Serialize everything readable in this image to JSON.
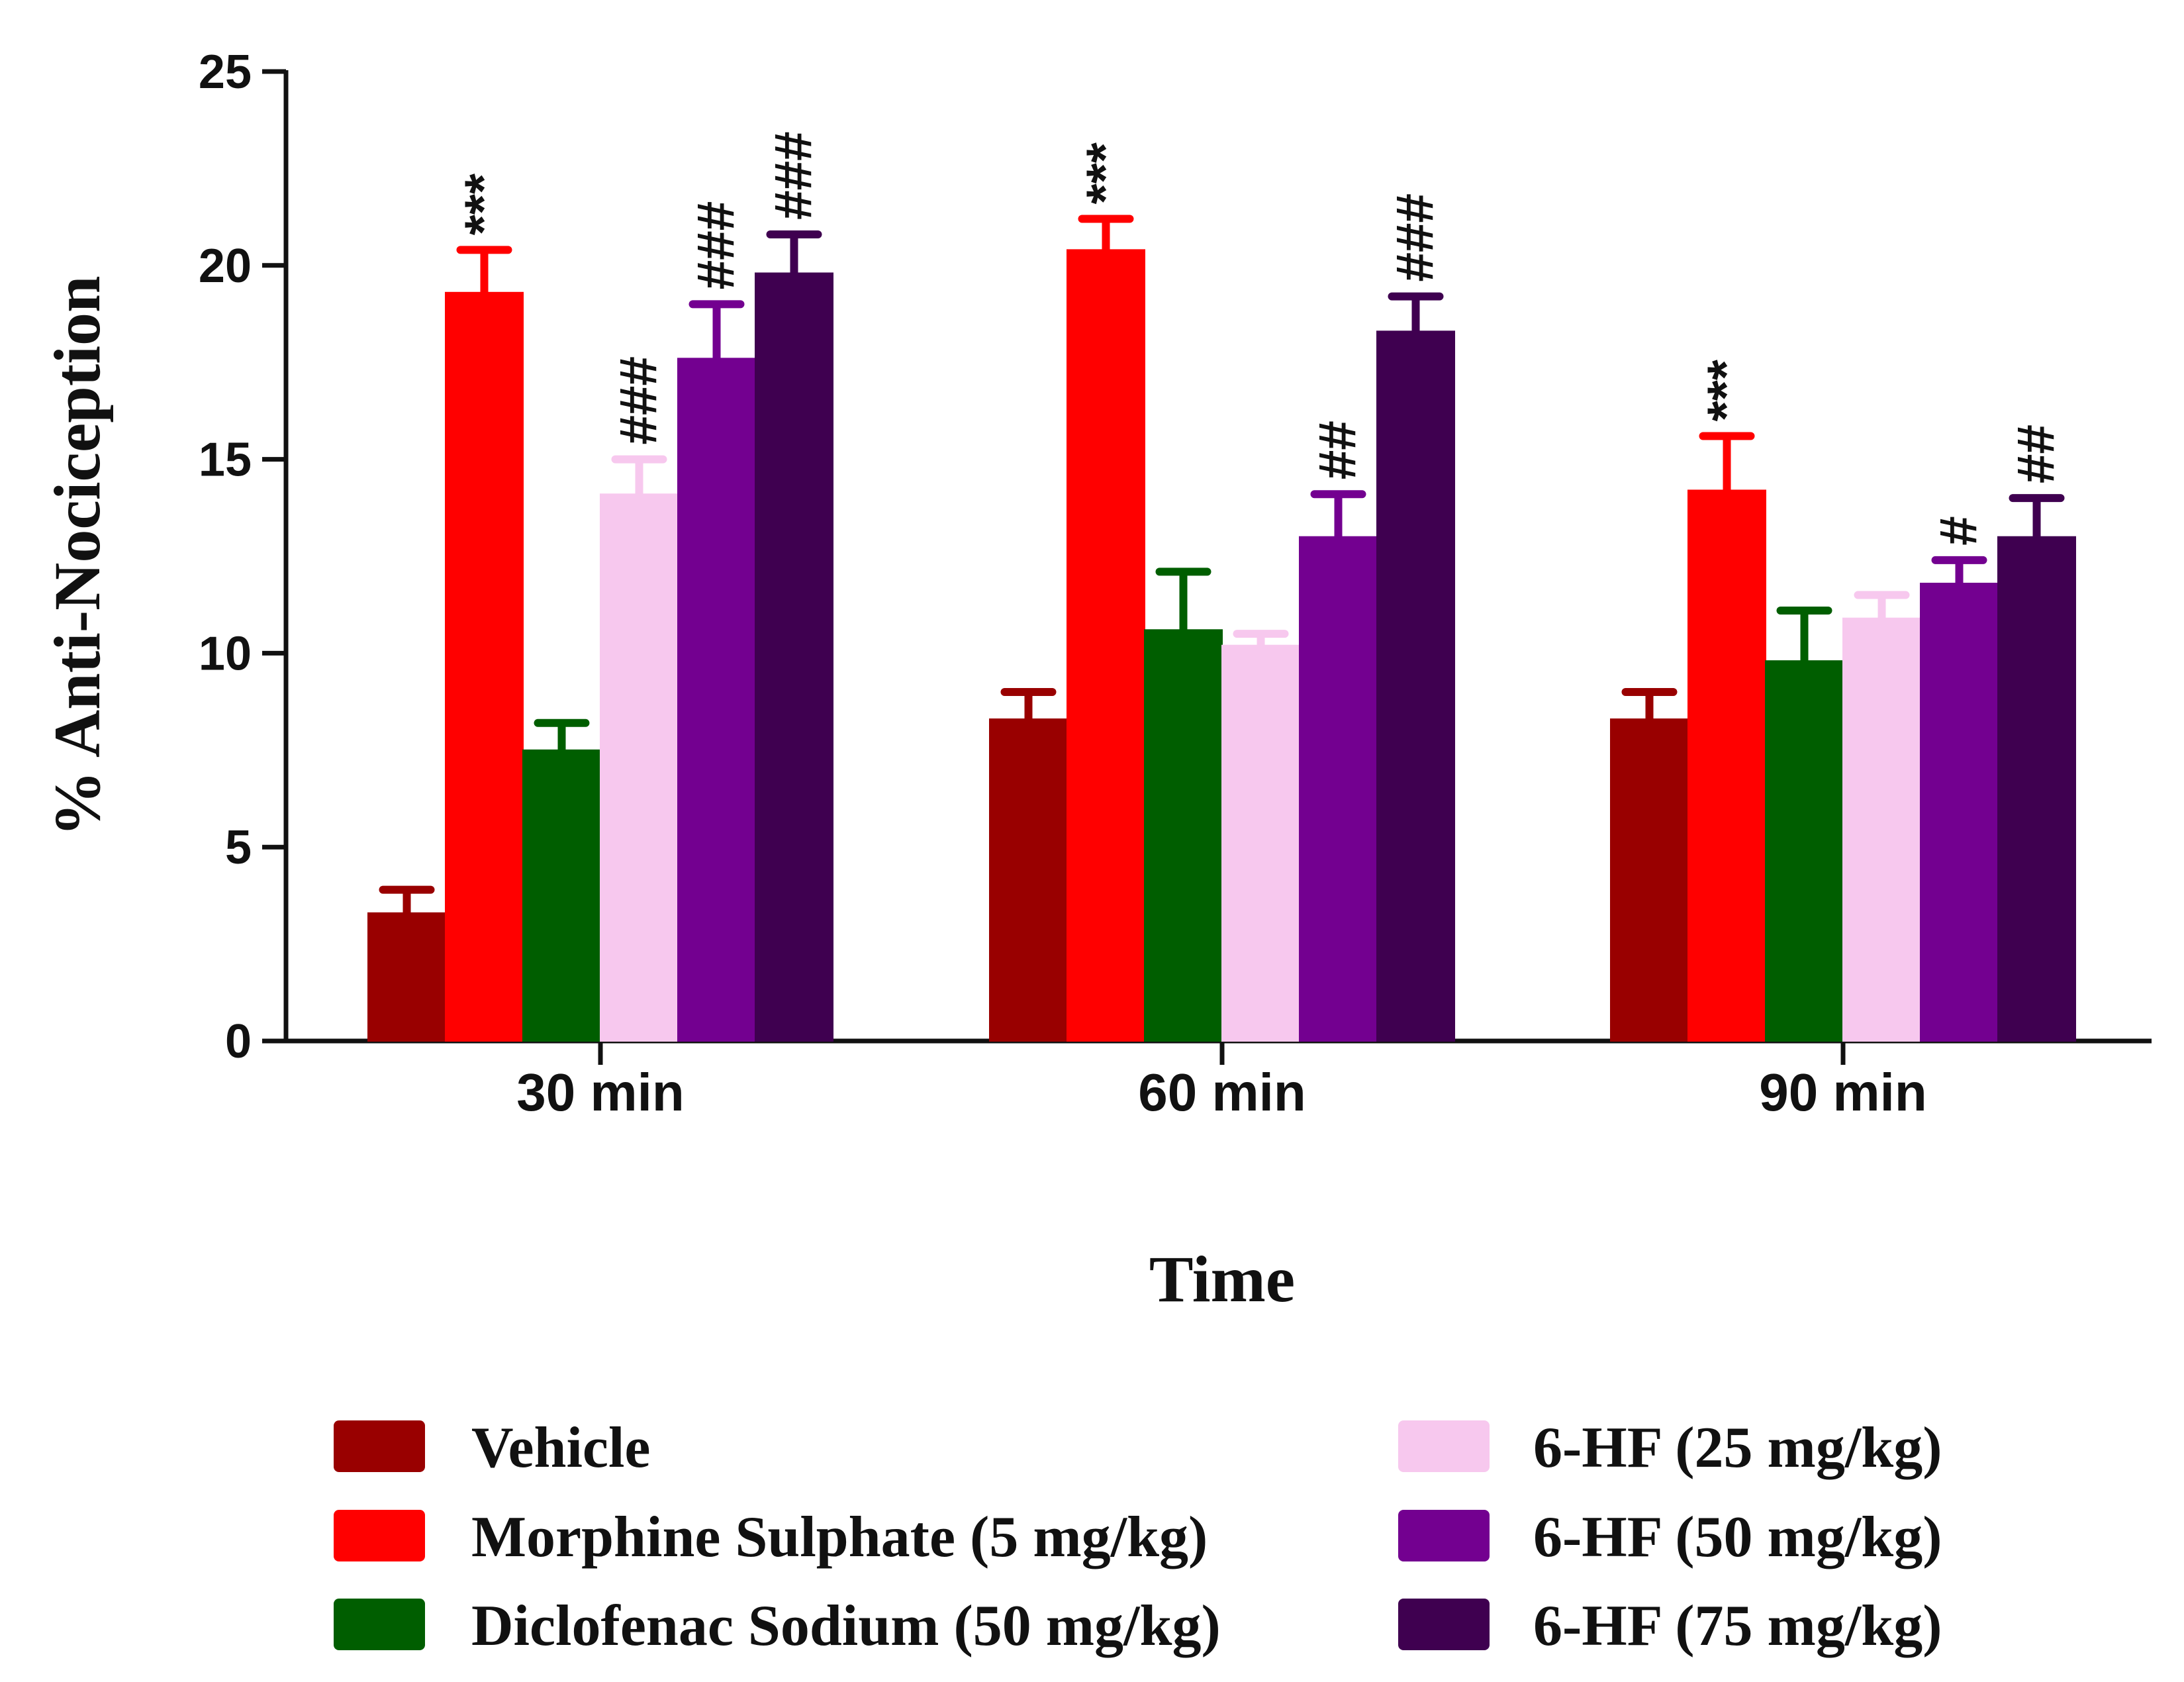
{
  "chart_data": {
    "type": "bar",
    "title": "",
    "xlabel": "Time",
    "ylabel": "% Anti-Nociception",
    "ylim": [
      0,
      25
    ],
    "yticks": [
      "0",
      "5",
      "10",
      "15",
      "20",
      "25"
    ],
    "categories": [
      "30 min",
      "60 min",
      "90 min"
    ],
    "series": [
      {
        "name": "Vehicle",
        "color": "#990000",
        "values": [
          3.3,
          8.3,
          8.3
        ],
        "errors": [
          0.6,
          0.7,
          0.7
        ],
        "marks": [
          "",
          "",
          ""
        ]
      },
      {
        "name": "Morphine Sulphate (5 mg/kg)",
        "color": "#ff0000",
        "values": [
          19.3,
          20.4,
          14.2
        ],
        "errors": [
          1.1,
          0.8,
          1.4
        ],
        "marks": [
          "***",
          "***",
          "***"
        ]
      },
      {
        "name": "Diclofenac Sodium (50 mg/kg)",
        "color": "#005e00",
        "values": [
          7.5,
          10.6,
          9.8
        ],
        "errors": [
          0.7,
          1.5,
          1.3
        ],
        "marks": [
          "",
          "",
          ""
        ]
      },
      {
        "name": "6-HF (25 mg/kg)",
        "color": "#f7c8ee",
        "values": [
          14.1,
          10.2,
          10.9
        ],
        "errors": [
          0.9,
          0.3,
          0.6
        ],
        "marks": [
          "###",
          "",
          ""
        ]
      },
      {
        "name": "6-HF (50 mg/kg)",
        "color": "#730090",
        "values": [
          17.6,
          13.0,
          11.8
        ],
        "errors": [
          1.4,
          1.1,
          0.6
        ],
        "marks": [
          "###",
          "##",
          "#"
        ]
      },
      {
        "name": "6-HF (75 mg/kg)",
        "color": "#3f0050",
        "values": [
          19.8,
          18.3,
          13.0
        ],
        "errors": [
          1.0,
          0.9,
          1.0
        ],
        "marks": [
          "###",
          "###",
          "##"
        ]
      }
    ],
    "legend": {
      "position": "bottom",
      "columns": 2
    }
  }
}
